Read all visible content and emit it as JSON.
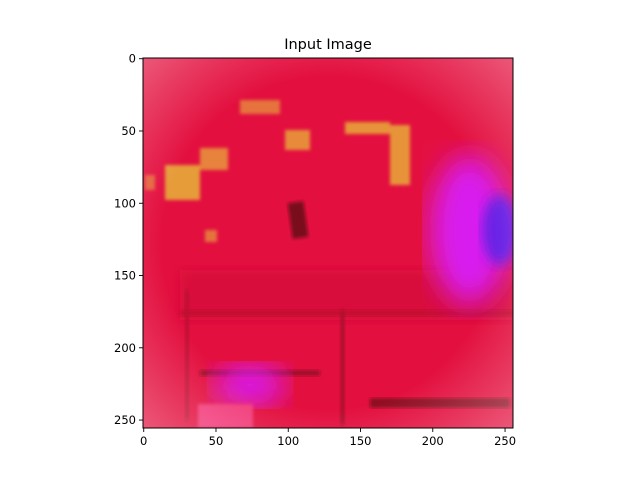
{
  "chart_data": {
    "type": "heatmap",
    "title": "Input Image",
    "xlabel": "",
    "ylabel": "",
    "xlim": [
      0,
      255
    ],
    "ylim": [
      255,
      0
    ],
    "xticks": [
      0,
      50,
      100,
      150,
      200,
      250
    ],
    "yticks": [
      0,
      50,
      100,
      150,
      200,
      250
    ],
    "grid": false,
    "colors": {
      "base": "#e3103f",
      "vignette": "#f27a8c",
      "yellow_patch": "#e8b43a",
      "magenta_blob": "#d81ff0",
      "blue_region": "#6a24e6",
      "dark_stripe": "#8f0a24"
    }
  }
}
